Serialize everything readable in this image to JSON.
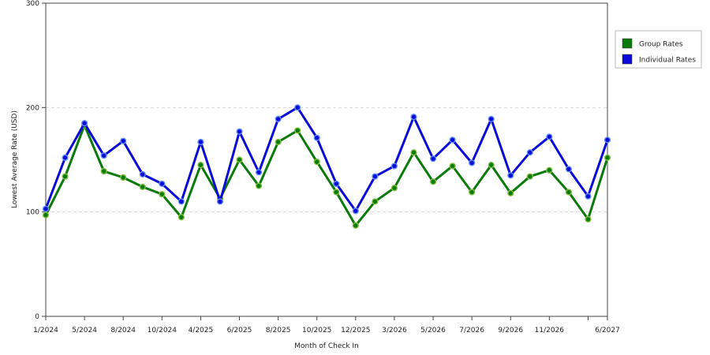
{
  "chart_data": {
    "type": "line",
    "title": "",
    "xlabel": "Month of Check In",
    "ylabel": "Lowest Average Rate (USD)",
    "ylim": [
      0,
      300
    ],
    "yticks": [
      0,
      100,
      200,
      300
    ],
    "grid": "horizontal dashed",
    "legend_position": "right",
    "x_tick_labels": [
      {
        "i": 0,
        "label": "1/2024"
      },
      {
        "i": 2,
        "label": "5/2024"
      },
      {
        "i": 4,
        "label": "8/2024"
      },
      {
        "i": 6,
        "label": "10/2024"
      },
      {
        "i": 8,
        "label": "4/2025"
      },
      {
        "i": 10,
        "label": "6/2025"
      },
      {
        "i": 12,
        "label": "8/2025"
      },
      {
        "i": 14,
        "label": "10/2025"
      },
      {
        "i": 16,
        "label": "12/2025"
      },
      {
        "i": 18,
        "label": "3/2026"
      },
      {
        "i": 20,
        "label": "5/2026"
      },
      {
        "i": 22,
        "label": "7/2026"
      },
      {
        "i": 24,
        "label": "9/2026"
      },
      {
        "i": 26,
        "label": "11/2026"
      },
      {
        "i": 29,
        "label": "6/2027"
      }
    ],
    "n_points": 30,
    "series": [
      {
        "name": "Group Rates",
        "color": "#0a7a0a",
        "values": [
          97,
          134,
          183,
          139,
          133,
          124,
          117,
          95,
          145,
          113,
          150,
          125,
          167,
          178,
          148,
          119,
          87,
          110,
          123,
          157,
          129,
          144,
          119,
          145,
          118,
          134,
          140,
          119,
          93,
          152
        ]
      },
      {
        "name": "Individual Rates",
        "color": "#0a0ad6",
        "values": [
          103,
          152,
          185,
          154,
          168,
          136,
          127,
          110,
          167,
          110,
          177,
          138,
          189,
          200,
          171,
          127,
          101,
          134,
          144,
          191,
          151,
          169,
          147,
          189,
          135,
          157,
          172,
          141,
          115,
          169
        ]
      }
    ]
  }
}
